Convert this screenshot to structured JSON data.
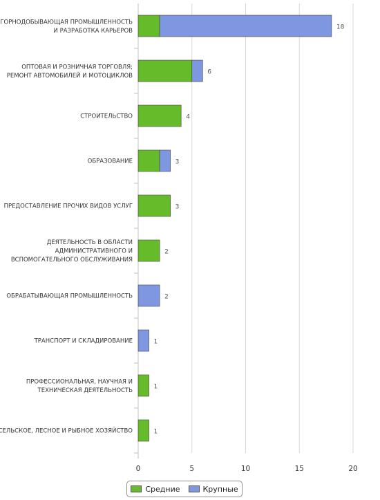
{
  "chart_data": {
    "type": "bar",
    "orientation": "horizontal",
    "stacked": true,
    "categories": [
      "ГОРНОДОБЫВАЮЩАЯ ПРОМЫШЛЕННОСТЬ И РАЗРАБОТКА КАРЬЕРОВ",
      "ОПТОВАЯ И РОЗНИЧНАЯ ТОРГОВЛЯ; РЕМОНТ АВТОМОБИЛЕЙ И МОТОЦИКЛОВ",
      "СТРОИТЕЛЬСТВО",
      "ОБРАЗОВАНИЕ",
      "ПРЕДОСТАВЛЕНИЕ ПРОЧИХ ВИДОВ УСЛУГ",
      "ДЕЯТЕЛЬНОСТЬ В ОБЛАСТИ АДМИНИСТРАТИВНОГО И ВСПОМОГАТЕЛЬНОГО ОБСЛУЖИВАНИЯ",
      "ОБРАБАТЫВАЮЩАЯ ПРОМЫШЛЕННОСТЬ",
      "ТРАНСПОРТ И СКЛАДИРОВАНИЕ",
      "ПРОФЕССИОНАЛЬНАЯ, НАУЧНАЯ И ТЕХНИЧЕСКАЯ ДЕЯТЕЛЬНОСТЬ",
      "СЕЛЬСКОЕ, ЛЕСНОЕ И РЫБНОЕ ХОЗЯЙСТВО"
    ],
    "category_lines": [
      [
        "ГОРНОДОБЫВАЮЩАЯ ПРОМЫШЛЕННОСТЬ",
        "И РАЗРАБОТКА КАРЬЕРОВ"
      ],
      [
        "ОПТОВАЯ И РОЗНИЧНАЯ ТОРГОВЛЯ;",
        "РЕМОНТ АВТОМОБИЛЕЙ И МОТОЦИКЛОВ"
      ],
      [
        "СТРОИТЕЛЬСТВО"
      ],
      [
        "ОБРАЗОВАНИЕ"
      ],
      [
        "ПРЕДОСТАВЛЕНИЕ ПРОЧИХ ВИДОВ УСЛУГ"
      ],
      [
        "ДЕЯТЕЛЬНОСТЬ В ОБЛАСТИ",
        "АДМИНИСТРАТИВНОГО И",
        "ВСПОМОГАТЕЛЬНОГО ОБСЛУЖИВАНИЯ"
      ],
      [
        "ОБРАБАТЫВАЮЩАЯ ПРОМЫШЛЕННОСТЬ"
      ],
      [
        "ТРАНСПОРТ И СКЛАДИРОВАНИЕ"
      ],
      [
        "ПРОФЕССИОНАЛЬНАЯ, НАУЧНАЯ И",
        "ТЕХНИЧЕСКАЯ ДЕЯТЕЛЬНОСТЬ"
      ],
      [
        "СЕЛЬСКОЕ, ЛЕСНОЕ И РЫБНОЕ ХОЗЯЙСТВО"
      ]
    ],
    "series": [
      {
        "name": "Средние",
        "color": "#66bb2a",
        "values": [
          2,
          5,
          4,
          2,
          3,
          2,
          0,
          0,
          1,
          1
        ]
      },
      {
        "name": "Крупные",
        "color": "#7f96e0",
        "values": [
          16,
          1,
          0,
          1,
          0,
          0,
          2,
          1,
          0,
          0
        ]
      }
    ],
    "totals": [
      "18",
      "6",
      "4",
      "3",
      "3",
      "2",
      "2",
      "1",
      "1",
      "1"
    ],
    "xlim": [
      0,
      20
    ],
    "x_ticks": [
      "0",
      "5",
      "10",
      "15",
      "20"
    ],
    "grid": true,
    "legend_position": "bottom-center",
    "title": "",
    "xlabel": "",
    "ylabel": ""
  },
  "legend": {
    "items": [
      {
        "label": "Средние",
        "color": "#66bb2a"
      },
      {
        "label": "Крупные",
        "color": "#7f96e0"
      }
    ]
  }
}
